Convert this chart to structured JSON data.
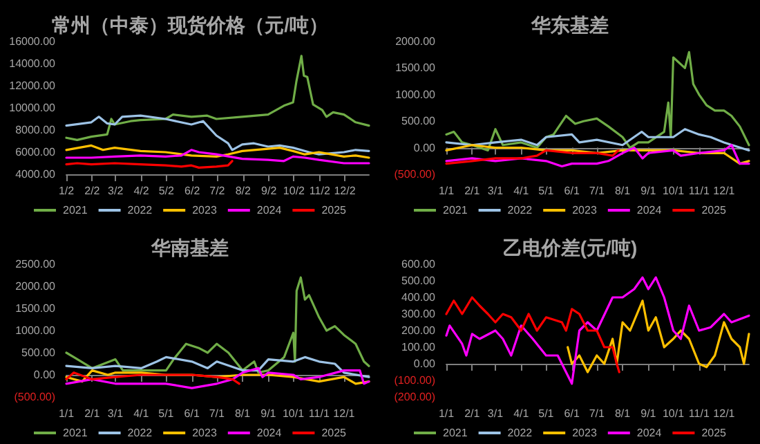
{
  "chart_data": [
    {
      "type": "line",
      "title": "常州（中泰）现货价格（元/吨）",
      "legend": "bottom",
      "ylim": [
        4000,
        16000
      ],
      "yticks": [
        {
          "value": 4000,
          "label": "4000.00"
        },
        {
          "value": 6000,
          "label": "6000.00"
        },
        {
          "value": 8000,
          "label": "8000.00"
        },
        {
          "value": 10000,
          "label": "10000.00"
        },
        {
          "value": 12000,
          "label": "12000.00"
        },
        {
          "value": 14000,
          "label": "14000.00"
        },
        {
          "value": 16000,
          "label": "16000.00"
        }
      ],
      "xlim": [
        "--01-02",
        "--12-31"
      ],
      "xticks": [
        {
          "value": "--01-02",
          "label": "1/2"
        },
        {
          "value": "--02-02",
          "label": "2/2"
        },
        {
          "value": "--03-02",
          "label": "3/2"
        },
        {
          "value": "--04-02",
          "label": "4/2"
        },
        {
          "value": "--05-02",
          "label": "5/2"
        },
        {
          "value": "--06-02",
          "label": "6/2"
        },
        {
          "value": "--07-02",
          "label": "7/2"
        },
        {
          "value": "--08-02",
          "label": "8/2"
        },
        {
          "value": "--09-02",
          "label": "9/2"
        },
        {
          "value": "--10-02",
          "label": "10/2"
        },
        {
          "value": "--11-02",
          "label": "11/2"
        },
        {
          "value": "--12-02",
          "label": "12/2"
        }
      ],
      "series": [
        {
          "name": "2021",
          "color": "#70ad47",
          "x": [
            "--01-02",
            "--01-15",
            "--02-01",
            "--02-20",
            "--02-25",
            "--03-01",
            "--03-20",
            "--04-01",
            "--05-01",
            "--05-10",
            "--06-01",
            "--06-20",
            "--07-01",
            "--08-01",
            "--09-01",
            "--09-20",
            "--10-01",
            "--10-05",
            "--10-11",
            "--10-14",
            "--10-18",
            "--10-25",
            "--11-05",
            "--11-10",
            "--11-18",
            "--12-01",
            "--12-15",
            "--12-31"
          ],
          "values": [
            7300,
            7100,
            7400,
            7600,
            9000,
            8500,
            8800,
            8900,
            9000,
            9400,
            9200,
            9300,
            9000,
            9200,
            9400,
            10200,
            10500,
            12400,
            14700,
            12900,
            12800,
            10300,
            9800,
            9200,
            9600,
            9400,
            8700,
            8400
          ]
        },
        {
          "name": "2022",
          "color": "#9dc3e6",
          "x": [
            "--01-02",
            "--02-01",
            "--02-10",
            "--02-20",
            "--03-01",
            "--03-10",
            "--04-01",
            "--05-01",
            "--06-01",
            "--06-15",
            "--07-01",
            "--07-15",
            "--07-20",
            "--08-01",
            "--08-15",
            "--09-01",
            "--09-15",
            "--10-01",
            "--10-20",
            "--11-01",
            "--12-01",
            "--12-15",
            "--12-31"
          ],
          "values": [
            8400,
            8700,
            9200,
            8600,
            8500,
            9200,
            9300,
            9000,
            8500,
            8800,
            7500,
            6800,
            6200,
            6700,
            6800,
            6500,
            6600,
            6400,
            6000,
            5800,
            6000,
            6200,
            6100
          ]
        },
        {
          "name": "2023",
          "color": "#ffc000",
          "x": [
            "--01-02",
            "--02-01",
            "--02-15",
            "--03-01",
            "--04-01",
            "--05-01",
            "--06-01",
            "--07-01",
            "--07-15",
            "--08-01",
            "--09-01",
            "--09-15",
            "--10-01",
            "--10-15",
            "--11-01",
            "--12-01",
            "--12-15",
            "--12-31"
          ],
          "values": [
            6200,
            6600,
            6200,
            6400,
            6100,
            6000,
            5700,
            5600,
            5800,
            6100,
            6300,
            6400,
            6100,
            5800,
            6000,
            5600,
            5700,
            5500
          ]
        },
        {
          "name": "2024",
          "color": "#ff00ff",
          "x": [
            "--01-02",
            "--02-01",
            "--03-01",
            "--04-01",
            "--05-01",
            "--05-20",
            "--06-01",
            "--06-10",
            "--07-01",
            "--08-01",
            "--09-01",
            "--09-20",
            "--10-01",
            "--10-15",
            "--11-01",
            "--12-01",
            "--12-31"
          ],
          "values": [
            5500,
            5500,
            5600,
            5700,
            5600,
            5700,
            6200,
            6000,
            5800,
            5400,
            5300,
            5200,
            5600,
            5500,
            5300,
            5000,
            5000
          ]
        },
        {
          "name": "2025",
          "color": "#ff0000",
          "x": [
            "--01-02",
            "--01-15",
            "--02-01",
            "--03-01",
            "--04-01",
            "--05-01",
            "--05-20",
            "--06-01",
            "--06-10",
            "--07-01",
            "--07-15",
            "--07-20"
          ],
          "values": [
            4900,
            5000,
            4900,
            5000,
            4900,
            4800,
            4700,
            4800,
            4600,
            4700,
            4800,
            5200
          ]
        }
      ]
    },
    {
      "type": "line",
      "title": "华东基差",
      "legend": "bottom",
      "ylim": [
        -500,
        2000
      ],
      "yticks": [
        {
          "value": -500,
          "label": "(500.00)"
        },
        {
          "value": 0,
          "label": "0.00"
        },
        {
          "value": 500,
          "label": "500.00"
        },
        {
          "value": 1000,
          "label": "1000.00"
        },
        {
          "value": 1500,
          "label": "1500.00"
        },
        {
          "value": 2000,
          "label": "2000.00"
        }
      ],
      "xlim": [
        "--01-01",
        "--12-31"
      ],
      "xticks": [
        {
          "value": "--01-01",
          "label": "1/1"
        },
        {
          "value": "--02-01",
          "label": "2/1"
        },
        {
          "value": "--03-01",
          "label": "3/1"
        },
        {
          "value": "--04-01",
          "label": "4/1"
        },
        {
          "value": "--05-01",
          "label": "5/1"
        },
        {
          "value": "--06-01",
          "label": "6/1"
        },
        {
          "value": "--07-01",
          "label": "7/1"
        },
        {
          "value": "--08-01",
          "label": "8/1"
        },
        {
          "value": "--09-01",
          "label": "9/1"
        },
        {
          "value": "--10-01",
          "label": "10/1"
        },
        {
          "value": "--11-01",
          "label": "11/1"
        },
        {
          "value": "--12-01",
          "label": "12/1"
        }
      ],
      "series": [
        {
          "name": "2021",
          "color": "#70ad47",
          "x": [
            "--01-01",
            "--01-10",
            "--01-20",
            "--02-01",
            "--02-20",
            "--03-01",
            "--03-10",
            "--04-01",
            "--04-20",
            "--05-01",
            "--05-10",
            "--05-25",
            "--06-05",
            "--06-15",
            "--07-01",
            "--07-15",
            "--08-01",
            "--08-10",
            "--08-20",
            "--09-01",
            "--09-20",
            "--09-25",
            "--09-28",
            "--10-01",
            "--10-15",
            "--10-20",
            "--10-25",
            "--11-01",
            "--11-10",
            "--11-20",
            "--12-01",
            "--12-10",
            "--12-20",
            "--12-31"
          ],
          "values": [
            250,
            300,
            100,
            50,
            -50,
            350,
            50,
            100,
            0,
            200,
            250,
            600,
            450,
            500,
            550,
            400,
            200,
            0,
            100,
            100,
            300,
            850,
            200,
            1700,
            1500,
            1800,
            1200,
            1000,
            800,
            700,
            700,
            600,
            400,
            50
          ]
        },
        {
          "name": "2022",
          "color": "#9dc3e6",
          "x": [
            "--01-01",
            "--02-01",
            "--03-01",
            "--04-01",
            "--04-20",
            "--05-01",
            "--06-01",
            "--06-10",
            "--07-01",
            "--08-01",
            "--08-24",
            "--09-01",
            "--10-01",
            "--10-15",
            "--11-01",
            "--11-15",
            "--12-01",
            "--12-31"
          ],
          "values": [
            100,
            50,
            100,
            150,
            50,
            200,
            250,
            100,
            150,
            50,
            300,
            200,
            200,
            350,
            250,
            200,
            100,
            -50
          ]
        },
        {
          "name": "2023",
          "color": "#ffc000",
          "x": [
            "--01-01",
            "--02-01",
            "--03-01",
            "--04-01",
            "--05-01",
            "--06-01",
            "--07-01",
            "--08-01",
            "--09-01",
            "--10-01",
            "--11-01",
            "--12-01",
            "--12-20",
            "--12-31"
          ],
          "values": [
            -50,
            50,
            0,
            0,
            -50,
            -50,
            -100,
            -50,
            -50,
            -50,
            -100,
            -100,
            -300,
            -250
          ]
        },
        {
          "name": "2024",
          "color": "#ff00ff",
          "x": [
            "--01-01",
            "--02-01",
            "--03-01",
            "--04-01",
            "--05-01",
            "--05-20",
            "--06-01",
            "--07-01",
            "--07-15",
            "--08-01",
            "--08-15",
            "--08-25",
            "--09-01",
            "--10-01",
            "--10-10",
            "--11-01",
            "--12-01",
            "--12-10",
            "--12-20",
            "--12-31"
          ],
          "values": [
            -250,
            -200,
            -250,
            -200,
            -250,
            -350,
            -300,
            -300,
            -250,
            -100,
            0,
            -200,
            -100,
            -50,
            -150,
            -100,
            -50,
            50,
            -300,
            -300
          ]
        },
        {
          "name": "2025",
          "color": "#ff0000",
          "x": [
            "--01-01",
            "--02-01",
            "--03-01",
            "--04-01",
            "--04-20",
            "--05-01",
            "--06-01",
            "--07-01",
            "--07-20",
            "--07-27"
          ],
          "values": [
            -300,
            -250,
            -200,
            -200,
            -150,
            -50,
            -100,
            -100,
            -150,
            -50
          ]
        }
      ]
    },
    {
      "type": "line",
      "title": "华南基差",
      "legend": "bottom",
      "ylim": [
        -500,
        2500
      ],
      "yticks": [
        {
          "value": -500,
          "label": "(500.00)"
        },
        {
          "value": 0,
          "label": "0.00"
        },
        {
          "value": 500,
          "label": "500.00"
        },
        {
          "value": 1000,
          "label": "1000.00"
        },
        {
          "value": 1500,
          "label": "1500.00"
        },
        {
          "value": 2000,
          "label": "2000.00"
        },
        {
          "value": 2500,
          "label": "2500.00"
        }
      ],
      "xlim": [
        "--01-01",
        "--12-31"
      ],
      "xticks": [
        {
          "value": "--01-01",
          "label": "1/1"
        },
        {
          "value": "--02-01",
          "label": "2/1"
        },
        {
          "value": "--03-01",
          "label": "3/1"
        },
        {
          "value": "--04-01",
          "label": "4/1"
        },
        {
          "value": "--05-01",
          "label": "5/1"
        },
        {
          "value": "--06-01",
          "label": "6/1"
        },
        {
          "value": "--07-01",
          "label": "7/1"
        },
        {
          "value": "--08-01",
          "label": "8/1"
        },
        {
          "value": "--09-01",
          "label": "9/1"
        },
        {
          "value": "--10-01",
          "label": "10/1"
        },
        {
          "value": "--11-01",
          "label": "11/1"
        },
        {
          "value": "--12-01",
          "label": "12/1"
        }
      ],
      "series": [
        {
          "name": "2021",
          "color": "#70ad47",
          "x": [
            "--01-01",
            "--01-10",
            "--02-01",
            "--03-01",
            "--03-10",
            "--04-01",
            "--05-01",
            "--05-10",
            "--05-25",
            "--06-10",
            "--06-20",
            "--07-01",
            "--07-15",
            "--08-01",
            "--08-15",
            "--08-20",
            "--09-01",
            "--09-20",
            "--10-01",
            "--10-03",
            "--10-05",
            "--10-10",
            "--10-15",
            "--10-20",
            "--11-01",
            "--11-10",
            "--11-20",
            "--12-01",
            "--12-15",
            "--12-25",
            "--12-31"
          ],
          "values": [
            500,
            400,
            150,
            350,
            100,
            100,
            100,
            350,
            700,
            600,
            500,
            700,
            500,
            100,
            300,
            50,
            100,
            400,
            950,
            300,
            1900,
            2200,
            1700,
            1800,
            1300,
            1000,
            1100,
            900,
            700,
            300,
            200
          ]
        },
        {
          "name": "2022",
          "color": "#9dc3e6",
          "x": [
            "--01-01",
            "--02-01",
            "--03-01",
            "--04-01",
            "--04-20",
            "--05-01",
            "--06-01",
            "--06-20",
            "--07-01",
            "--08-01",
            "--08-20",
            "--09-01",
            "--10-01",
            "--10-15",
            "--11-01",
            "--11-20",
            "--12-01",
            "--12-31"
          ],
          "values": [
            200,
            150,
            200,
            150,
            300,
            400,
            300,
            150,
            300,
            100,
            100,
            350,
            300,
            400,
            300,
            250,
            50,
            -50
          ]
        },
        {
          "name": "2023",
          "color": "#ffc000",
          "x": [
            "--01-01",
            "--01-20",
            "--02-01",
            "--02-20",
            "--03-01",
            "--04-01",
            "--05-01",
            "--06-01",
            "--07-01",
            "--08-01",
            "--09-01",
            "--10-01",
            "--11-01",
            "--12-01",
            "--12-15",
            "--12-31"
          ],
          "values": [
            -50,
            -150,
            100,
            0,
            50,
            50,
            0,
            0,
            -50,
            0,
            0,
            -50,
            -150,
            -50,
            -200,
            -150
          ]
        },
        {
          "name": "2024",
          "color": "#ff00ff",
          "x": [
            "--01-01",
            "--02-01",
            "--03-01",
            "--04-01",
            "--05-01",
            "--06-01",
            "--07-01",
            "--07-20",
            "--08-01",
            "--08-20",
            "--08-25",
            "--09-01",
            "--10-01",
            "--10-10",
            "--11-01",
            "--12-01",
            "--12-20",
            "--12-25",
            "--12-31"
          ],
          "values": [
            -200,
            -100,
            -200,
            -200,
            -200,
            -300,
            -200,
            -100,
            50,
            150,
            -50,
            50,
            0,
            -100,
            -50,
            100,
            100,
            -200,
            -150
          ]
        },
        {
          "name": "2025",
          "color": "#ff0000",
          "x": [
            "--01-01",
            "--01-10",
            "--02-01",
            "--03-01",
            "--04-01",
            "--05-01",
            "--06-01",
            "--07-01",
            "--07-20",
            "--07-28"
          ],
          "values": [
            -100,
            50,
            -100,
            -50,
            0,
            0,
            0,
            -50,
            -100,
            -200
          ]
        }
      ]
    },
    {
      "type": "line",
      "title": "乙电价差(元/吨)",
      "legend": "bottom",
      "ylim": [
        -200,
        600
      ],
      "yticks": [
        {
          "value": -200,
          "label": "(200.00)"
        },
        {
          "value": -100,
          "label": "(100.00)"
        },
        {
          "value": 0,
          "label": "0.00"
        },
        {
          "value": 100,
          "label": "100.00"
        },
        {
          "value": 200,
          "label": "200.00"
        },
        {
          "value": 300,
          "label": "300.00"
        },
        {
          "value": 400,
          "label": "400.00"
        },
        {
          "value": 500,
          "label": "500.00"
        },
        {
          "value": 600,
          "label": "600.00"
        }
      ],
      "xlim": [
        "--01-01",
        "--12-31"
      ],
      "xticks": [
        {
          "value": "--01-01",
          "label": "1/1"
        },
        {
          "value": "--02-01",
          "label": "2/1"
        },
        {
          "value": "--03-01",
          "label": "3/1"
        },
        {
          "value": "--04-01",
          "label": "4/1"
        },
        {
          "value": "--05-01",
          "label": "5/1"
        },
        {
          "value": "--06-01",
          "label": "6/1"
        },
        {
          "value": "--07-01",
          "label": "7/1"
        },
        {
          "value": "--08-01",
          "label": "8/1"
        },
        {
          "value": "--09-01",
          "label": "9/1"
        },
        {
          "value": "--10-01",
          "label": "10/1"
        },
        {
          "value": "--11-01",
          "label": "11/1"
        },
        {
          "value": "--12-01",
          "label": "12/1"
        }
      ],
      "series": [
        {
          "name": "2021",
          "color": "#70ad47"
        },
        {
          "name": "2022",
          "color": "#9dc3e6"
        },
        {
          "name": "2023",
          "color": "#ffc000",
          "x": [
            "--05-27",
            "--06-01",
            "--06-10",
            "--06-20",
            "--07-01",
            "--07-10",
            "--07-20",
            "--07-25",
            "--08-01",
            "--08-10",
            "--08-25",
            "--09-01",
            "--09-10",
            "--09-20",
            "--10-01",
            "--10-10",
            "--10-20",
            "--11-01",
            "--11-10",
            "--11-20",
            "--12-01",
            "--12-10",
            "--12-20",
            "--12-25",
            "--12-31"
          ],
          "values": [
            100,
            0,
            50,
            -50,
            50,
            0,
            150,
            0,
            250,
            200,
            380,
            200,
            280,
            100,
            150,
            200,
            150,
            0,
            -20,
            50,
            250,
            150,
            100,
            0,
            180
          ]
        },
        {
          "name": "2024",
          "color": "#ff00ff",
          "x": [
            "--01-01",
            "--01-05",
            "--01-20",
            "--01-25",
            "--02-01",
            "--02-10",
            "--03-01",
            "--03-10",
            "--03-20",
            "--04-01",
            "--04-15",
            "--05-01",
            "--05-15",
            "--05-25",
            "--06-01",
            "--06-10",
            "--06-20",
            "--07-01",
            "--07-20",
            "--08-01",
            "--08-15",
            "--08-25",
            "--09-01",
            "--09-10",
            "--09-20",
            "--10-01",
            "--10-10",
            "--10-20",
            "--11-01",
            "--11-15",
            "--12-01",
            "--12-10",
            "--12-31"
          ],
          "values": [
            170,
            230,
            120,
            50,
            180,
            150,
            200,
            150,
            50,
            230,
            150,
            50,
            50,
            -50,
            -120,
            200,
            250,
            200,
            400,
            400,
            450,
            520,
            450,
            520,
            400,
            200,
            150,
            350,
            200,
            220,
            300,
            250,
            290
          ]
        },
        {
          "name": "2025",
          "color": "#ff0000",
          "x": [
            "--01-01",
            "--01-10",
            "--01-20",
            "--02-01",
            "--02-10",
            "--02-20",
            "--03-01",
            "--03-10",
            "--03-20",
            "--04-01",
            "--04-10",
            "--04-20",
            "--05-01",
            "--05-20",
            "--05-25",
            "--06-01",
            "--06-10",
            "--06-20",
            "--07-01",
            "--07-10",
            "--07-20",
            "--07-25",
            "--07-28"
          ],
          "values": [
            300,
            380,
            300,
            400,
            350,
            300,
            250,
            300,
            280,
            200,
            300,
            200,
            280,
            250,
            200,
            330,
            300,
            200,
            200,
            100,
            100,
            0,
            -50
          ]
        }
      ]
    }
  ]
}
